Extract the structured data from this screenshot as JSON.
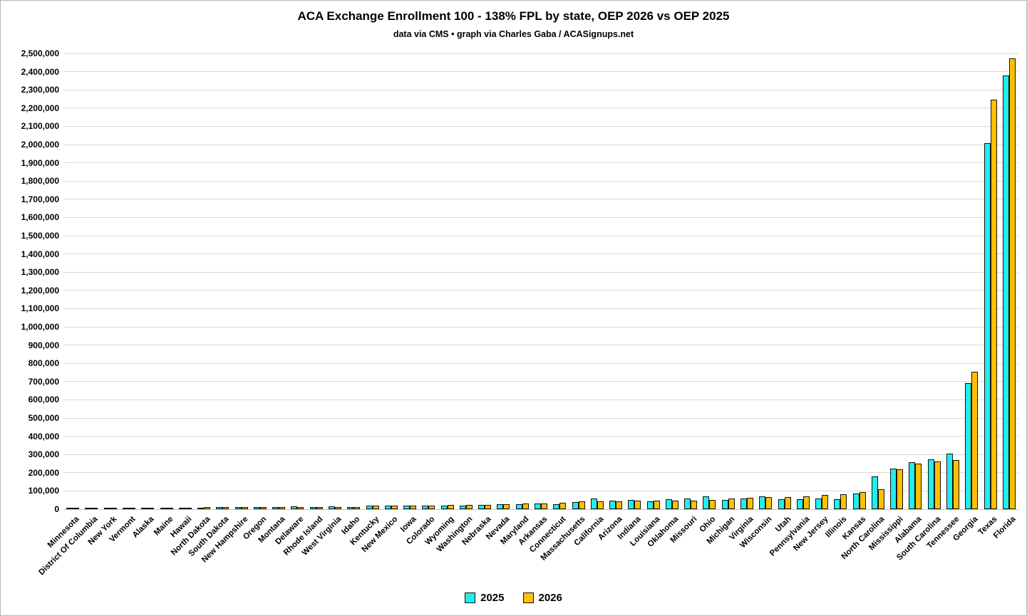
{
  "title": "ACA Exchange Enrollment 100 - 138% FPL by state, OEP 2026 vs OEP 2025",
  "subtitle": "data via CMS • graph via Charles Gaba / ACASignups.net",
  "legend": {
    "items": [
      {
        "label": "2025",
        "color": "#21EDED"
      },
      {
        "label": "2026",
        "color": "#FFC000"
      }
    ]
  },
  "chart_data": {
    "type": "bar",
    "title": "ACA Exchange Enrollment 100 - 138% FPL by state, OEP 2026 vs OEP 2025",
    "subtitle": "data via CMS • graph via Charles Gaba / ACASignups.net",
    "xlabel": "",
    "ylabel": "",
    "ylim": [
      0,
      2500000
    ],
    "ytick_step": 100000,
    "grid": true,
    "legend_position": "bottom",
    "bar_colors": {
      "2025": "#21EDED",
      "2026": "#FFC000"
    },
    "categories": [
      "Minnesota",
      "District Of Columbia",
      "New York",
      "Vermont",
      "Alaska",
      "Maine",
      "Hawaii",
      "North Dakota",
      "South Dakota",
      "New Hampshire",
      "Oregon",
      "Montana",
      "Delaware",
      "Rhode Island",
      "West Virginia",
      "Idaho",
      "Kentucky",
      "New Mexico",
      "Iowa",
      "Colorado",
      "Wyoming",
      "Washington",
      "Nebraska",
      "Nevada",
      "Maryland",
      "Arkansas",
      "Connecticut",
      "Massachusetts",
      "California",
      "Arizona",
      "Indiana",
      "Louisiana",
      "Oklahoma",
      "Missouri",
      "Ohio",
      "Michigan",
      "Virginia",
      "Wisconsin",
      "Utah",
      "Pennsylvania",
      "New Jersey",
      "Illinois",
      "Kansas",
      "North Carolina",
      "Mississippi",
      "Alabama",
      "South Carolina",
      "Tennessee",
      "Georgia",
      "Texas",
      "Florida"
    ],
    "series": [
      {
        "name": "2025",
        "color": "#21EDED",
        "values": [
          300,
          500,
          700,
          900,
          1100,
          1300,
          1500,
          1800,
          2100,
          2400,
          2700,
          3000,
          6000,
          3500,
          8000,
          5000,
          10000,
          11000,
          12000,
          10000,
          10000,
          13000,
          14000,
          19000,
          21000,
          23000,
          19000,
          31000,
          49000,
          40000,
          43000,
          36000,
          47000,
          50000,
          62000,
          44000,
          52000,
          61000,
          45000,
          48000,
          49000,
          45000,
          79000,
          170000,
          216000,
          249000,
          264000,
          295000,
          685000,
          2000000,
          2370000
        ]
      },
      {
        "name": "2026",
        "color": "#FFC000",
        "values": [
          400,
          600,
          800,
          1000,
          1200,
          1400,
          1700,
          2000,
          2300,
          2600,
          2900,
          3200,
          3500,
          4000,
          4500,
          5500,
          12000,
          12500,
          13000,
          13500,
          14000,
          16000,
          16500,
          19000,
          22000,
          22500,
          27000,
          34000,
          36000,
          36500,
          39000,
          39500,
          40000,
          41000,
          44000,
          52000,
          56000,
          57000,
          58000,
          61000,
          71000,
          73000,
          84000,
          101000,
          212000,
          244000,
          252000,
          262000,
          745000,
          2240000,
          2465000
        ]
      }
    ]
  }
}
